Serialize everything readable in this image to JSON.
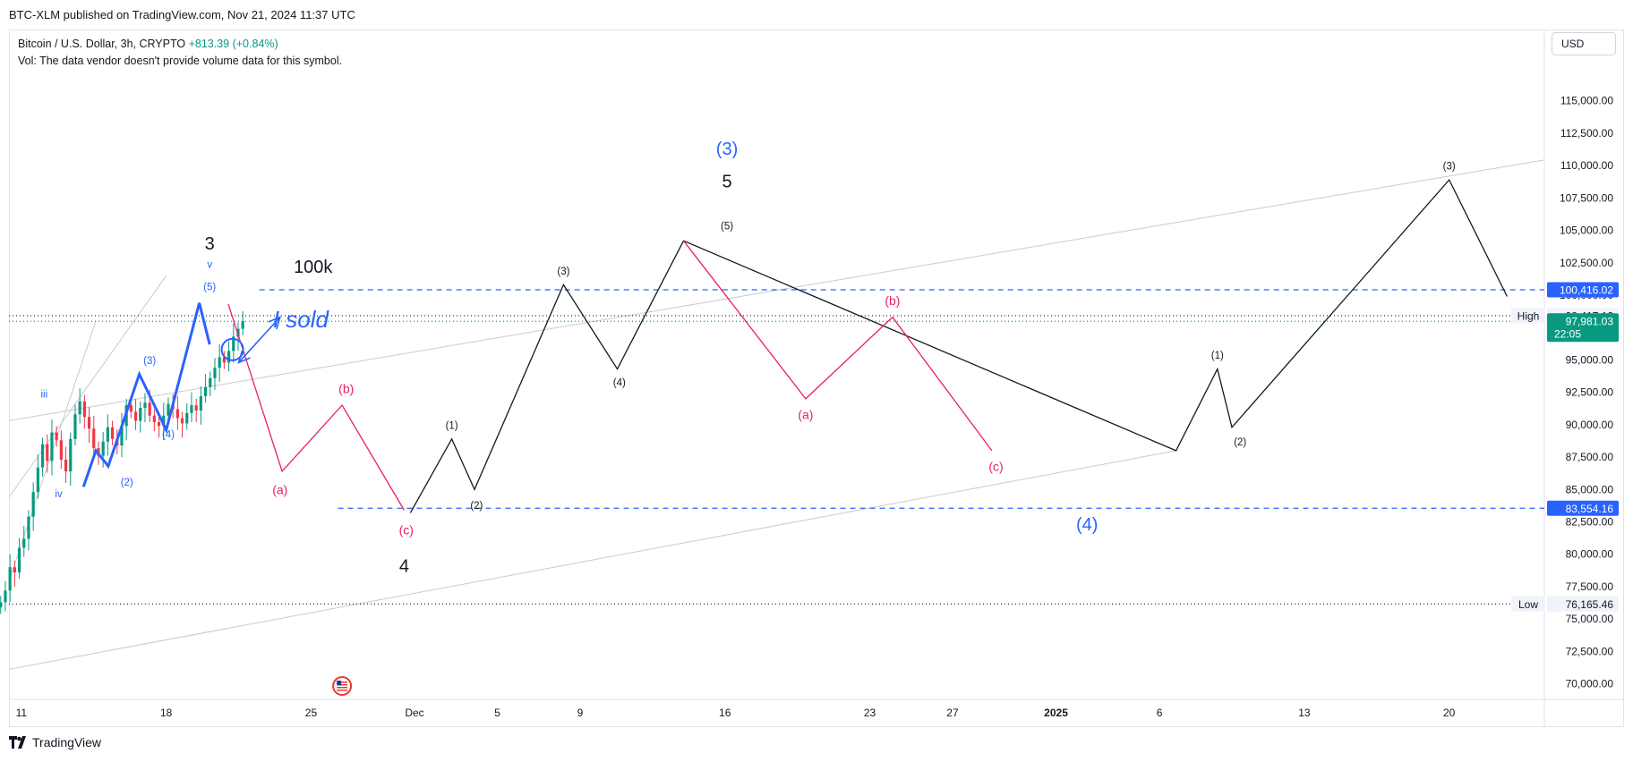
{
  "header": {
    "publish_line": "BTC-XLM published on TradingView.com, Nov 21, 2024 11:37 UTC"
  },
  "legend": {
    "symbol": "Bitcoin / U.S. Dollar, 3h, CRYPTO",
    "change": "+813.39 (+0.84%)",
    "vol_note": "Vol: The data vendor doesn't provide volume data for this symbol."
  },
  "toolbar": {
    "currency": "USD"
  },
  "footer": {
    "logo_text": "TradingView"
  },
  "colors": {
    "black_wave": "#131722",
    "pink_wave": "#e91e63",
    "blue_wave": "#2962ff",
    "candle_up": "#089981",
    "candle_down": "#f23645",
    "badge_blue": "#2962ff",
    "badge_green": "#089981",
    "channel": "#c8cad0"
  },
  "chart_data": {
    "type": "line",
    "title": "",
    "xlabel": "",
    "ylabel": "",
    "ylim": [
      68800,
      118500
    ],
    "y_ticks": [
      70000,
      72500,
      75000,
      77500,
      80000,
      82500,
      85000,
      87500,
      90000,
      92500,
      95000,
      97500,
      100000,
      102500,
      105000,
      107500,
      110000,
      112500,
      115000
    ],
    "y_tick_labels": [
      "70,000.00",
      "72,500.00",
      "75,000.00",
      "77,500.00",
      "80,000.00",
      "82,500.00",
      "85,000.00",
      "87,500.00",
      "90,000.00",
      "92,500.00",
      "95,000.00",
      "97,500.00",
      "100,000.00",
      "102,500.00",
      "105,000.00",
      "107,500.00",
      "110,000.00",
      "112,500.00",
      "115,000.00"
    ],
    "x_ticks": [
      {
        "day": 11,
        "label": "11",
        "bold": false
      },
      {
        "day": 18,
        "label": "18",
        "bold": false
      },
      {
        "day": 25,
        "label": "25",
        "bold": false
      },
      {
        "day": 30,
        "label": "Dec",
        "bold": false
      },
      {
        "day": 34,
        "label": "5",
        "bold": false
      },
      {
        "day": 38,
        "label": "9",
        "bold": false
      },
      {
        "day": 45,
        "label": "16",
        "bold": false
      },
      {
        "day": 52,
        "label": "23",
        "bold": false
      },
      {
        "day": 56,
        "label": "27",
        "bold": false
      },
      {
        "day": 61,
        "label": "2025",
        "bold": true
      },
      {
        "day": 66,
        "label": "6",
        "bold": false
      },
      {
        "day": 73,
        "label": "13",
        "bold": false
      },
      {
        "day": 80,
        "label": "20",
        "bold": false
      }
    ],
    "x_unit_note": "x = day index counted from Oct 31, 2024",
    "price_candles_close": [
      76300,
      77200,
      79000,
      78600,
      80500,
      81200,
      82900,
      84800,
      86700,
      88500,
      87200,
      89400,
      88800,
      87300,
      86400,
      88900,
      90800,
      91800,
      90600,
      89700,
      88200,
      87600,
      88700,
      89800,
      88900,
      88400,
      89900,
      91500,
      91000,
      90300,
      91300,
      91700,
      90700,
      90200,
      89900,
      90700,
      91600,
      91200,
      90500,
      90100,
      90900,
      91500,
      91100,
      92200,
      92900,
      93600,
      94400,
      95200,
      94800,
      95700,
      96800,
      97400,
      98000
    ],
    "price_x_range": [
      10.0,
      21.7
    ],
    "series": [
      {
        "name": "black",
        "points": [
          [
            29.8,
            83200
          ],
          [
            31.8,
            88900
          ],
          [
            32.9,
            85000
          ],
          [
            37.2,
            100800
          ],
          [
            39.8,
            94300
          ],
          [
            43.0,
            104200
          ],
          [
            66.8,
            88000
          ],
          [
            68.8,
            94300
          ],
          [
            69.5,
            89800
          ],
          [
            80.0,
            108900
          ],
          [
            82.8,
            99900
          ]
        ]
      },
      {
        "name": "pink",
        "points": [
          [
            21.0,
            99300
          ],
          [
            23.6,
            86400
          ],
          [
            26.5,
            91500
          ],
          [
            29.5,
            83400
          ]
        ],
        "points2": [
          [
            43.0,
            104200
          ],
          [
            48.9,
            92000
          ],
          [
            53.1,
            98300
          ],
          [
            57.9,
            88000
          ]
        ]
      },
      {
        "name": "blue",
        "points": [
          [
            14.0,
            85200
          ],
          [
            14.6,
            88000
          ],
          [
            15.2,
            86800
          ],
          [
            16.7,
            93900
          ],
          [
            18.0,
            89600
          ],
          [
            19.6,
            99400
          ],
          [
            20.1,
            96200
          ]
        ]
      }
    ],
    "horizontal_lines": [
      {
        "price": 100416.02,
        "style": "dashed",
        "color": "#2962ff",
        "label": "100,416.02"
      },
      {
        "price": 83554.16,
        "style": "dashed",
        "color": "#2962ff",
        "label": "83,554.16"
      },
      {
        "price": 98417.12,
        "style": "dotted",
        "color": "#131722",
        "label": "98,417.12",
        "tag": "High"
      },
      {
        "price": 76165.46,
        "style": "dotted",
        "color": "#131722",
        "label": "76,165.46",
        "tag": "Low"
      },
      {
        "price": 97981.03,
        "style": "dotted",
        "color": "#089981",
        "label": "97,981.03",
        "countdown": "22:05"
      }
    ],
    "channels": [
      [
        [
          10.0,
          76000
        ],
        [
          14.6,
          98000
        ]
      ],
      [
        [
          10.0,
          83500
        ],
        [
          18.0,
          101500
        ]
      ],
      [
        [
          10.0,
          90200
        ],
        [
          90.0,
          111900
        ]
      ],
      [
        [
          10.0,
          71000
        ],
        [
          66.8,
          88000
        ]
      ]
    ],
    "arrow": {
      "from": [
        21.5,
        94800
      ],
      "to": [
        23.5,
        98300
      ]
    },
    "circle_marker": [
      21.2,
      95800
    ],
    "annotations": [
      {
        "text": "(3)",
        "x": 45.1,
        "y": 111200,
        "color": "#2962ff",
        "size": "large"
      },
      {
        "text": "5",
        "x": 45.1,
        "y": 108700,
        "color": "#131722",
        "size": "large"
      },
      {
        "text": "(5)",
        "x": 45.1,
        "y": 105300,
        "color": "#131722",
        "size": "small"
      },
      {
        "text": "3",
        "x": 20.1,
        "y": 103900,
        "color": "#131722",
        "size": "large"
      },
      {
        "text": "v",
        "x": 20.1,
        "y": 102300,
        "color": "#2962ff",
        "size": "small"
      },
      {
        "text": "100k",
        "x": 25.1,
        "y": 102100,
        "color": "#131722",
        "size": "large"
      },
      {
        "text": "(5)",
        "x": 20.1,
        "y": 100600,
        "color": "#2962ff",
        "size": "small"
      },
      {
        "text": "I sold",
        "x": 24.5,
        "y": 98000,
        "color": "#2962ff",
        "size": "xlarge"
      },
      {
        "text": "(3)",
        "x": 17.2,
        "y": 94900,
        "color": "#2962ff",
        "size": "small"
      },
      {
        "text": "iii",
        "x": 12.1,
        "y": 92300,
        "color": "#2962ff",
        "size": "small"
      },
      {
        "text": "(4)",
        "x": 18.1,
        "y": 89200,
        "color": "#2962ff",
        "size": "small"
      },
      {
        "text": "(2)",
        "x": 16.1,
        "y": 85500,
        "color": "#2962ff",
        "size": "small"
      },
      {
        "text": "iv",
        "x": 12.8,
        "y": 84600,
        "color": "#2962ff",
        "size": "small"
      },
      {
        "text": "(b)",
        "x": 26.7,
        "y": 92700,
        "color": "#e91e63",
        "size": "medium"
      },
      {
        "text": "(a)",
        "x": 23.5,
        "y": 84900,
        "color": "#e91e63",
        "size": "medium"
      },
      {
        "text": "(c)",
        "x": 29.6,
        "y": 81800,
        "color": "#e91e63",
        "size": "medium"
      },
      {
        "text": "4",
        "x": 29.5,
        "y": 79000,
        "color": "#131722",
        "size": "large"
      },
      {
        "text": "(1)",
        "x": 31.8,
        "y": 89900,
        "color": "#131722",
        "size": "small"
      },
      {
        "text": "(2)",
        "x": 33.0,
        "y": 83700,
        "color": "#131722",
        "size": "small"
      },
      {
        "text": "(3)",
        "x": 37.2,
        "y": 101800,
        "color": "#131722",
        "size": "small"
      },
      {
        "text": "(4)",
        "x": 39.9,
        "y": 93200,
        "color": "#131722",
        "size": "small"
      },
      {
        "text": "(a)",
        "x": 48.9,
        "y": 90700,
        "color": "#e91e63",
        "size": "medium"
      },
      {
        "text": "(b)",
        "x": 53.1,
        "y": 99500,
        "color": "#e91e63",
        "size": "medium"
      },
      {
        "text": "(c)",
        "x": 58.1,
        "y": 86700,
        "color": "#e91e63",
        "size": "medium"
      },
      {
        "text": "(4)",
        "x": 62.5,
        "y": 82200,
        "color": "#2962ff",
        "size": "large"
      },
      {
        "text": "(1)",
        "x": 68.8,
        "y": 95300,
        "color": "#131722",
        "size": "small"
      },
      {
        "text": "(2)",
        "x": 69.9,
        "y": 88600,
        "color": "#131722",
        "size": "small"
      },
      {
        "text": "(3)",
        "x": 80.0,
        "y": 109900,
        "color": "#131722",
        "size": "small"
      }
    ]
  }
}
